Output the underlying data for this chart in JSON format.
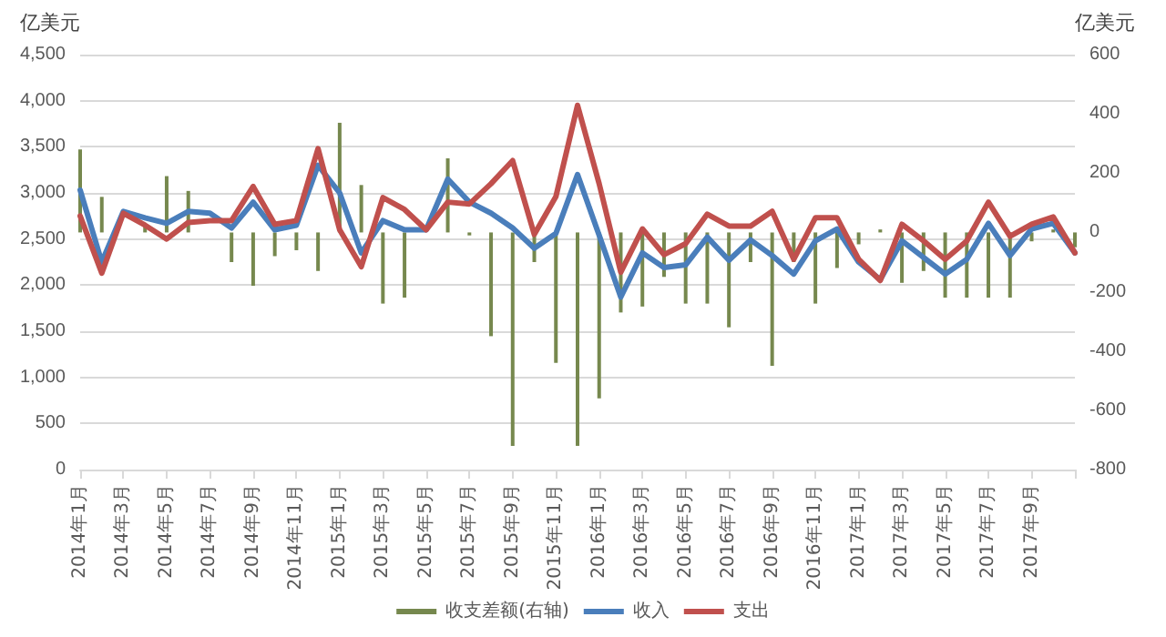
{
  "chart_data": {
    "type": "line",
    "ylabel": "亿美元",
    "y2label": "亿美元",
    "categories": [
      "2014年1月",
      null,
      "2014年3月",
      null,
      "2014年5月",
      null,
      "2014年7月",
      null,
      "2014年9月",
      null,
      "2014年11月",
      null,
      "2015年1月",
      null,
      "2015年3月",
      null,
      "2015年5月",
      null,
      "2015年7月",
      null,
      "2015年9月",
      null,
      "2015年11月",
      null,
      "2016年1月",
      null,
      "2016年3月",
      null,
      "2016年5月",
      null,
      "2016年7月",
      null,
      "2016年9月",
      null,
      "2016年11月",
      null,
      "2017年1月",
      null,
      "2017年3月",
      null,
      "2017年5月",
      null,
      "2017年7月",
      null,
      "2017年9月",
      null,
      null
    ],
    "series": [
      {
        "name": "收支差额(右轴)",
        "type": "bar",
        "axis": "y2",
        "color": "#76884e",
        "values": [
          280,
          120,
          null,
          20,
          190,
          140,
          null,
          -100,
          -180,
          -80,
          -60,
          -130,
          370,
          160,
          -240,
          -220,
          0,
          250,
          -10,
          -350,
          -720,
          -100,
          -440,
          -720,
          -560,
          -270,
          -250,
          -150,
          -240,
          -240,
          -320,
          -100,
          -450,
          -100,
          -240,
          -120,
          -40,
          10,
          -170,
          -130,
          -220,
          -220,
          -220,
          -220,
          -30,
          10,
          -50
        ]
      },
      {
        "name": "收入",
        "color": "#4a7ebb",
        "values": [
          3030,
          2250,
          2800,
          2730,
          2670,
          2800,
          2780,
          2620,
          2900,
          2600,
          2650,
          3300,
          3000,
          2350,
          2700,
          2600,
          2600,
          3150,
          2900,
          2780,
          2620,
          2400,
          2560,
          3200,
          2540,
          1870,
          2350,
          2190,
          2220,
          2520,
          2270,
          2490,
          2320,
          2120,
          2480,
          2610,
          2250,
          2060,
          2480,
          2300,
          2120,
          2280,
          2670,
          2320,
          2610,
          2670,
          2350
        ]
      },
      {
        "name": "支出",
        "color": "#c0504d",
        "values": [
          2750,
          2130,
          2780,
          2650,
          2500,
          2680,
          2700,
          2700,
          3070,
          2660,
          2700,
          3480,
          2600,
          2200,
          2950,
          2820,
          2600,
          2900,
          2880,
          3100,
          3350,
          2550,
          2960,
          3950,
          3100,
          2140,
          2610,
          2330,
          2450,
          2770,
          2640,
          2640,
          2800,
          2280,
          2730,
          2730,
          2280,
          2050,
          2660,
          2480,
          2280,
          2480,
          2900,
          2530,
          2660,
          2740,
          2350
        ]
      }
    ],
    "ylim": [
      0,
      4500
    ],
    "yticks": [
      0,
      500,
      {
        "value": 1000,
        "label": "1,000"
      },
      {
        "value": 1500,
        "label": "1,500"
      },
      {
        "value": 2000,
        "label": "2,000"
      },
      {
        "value": 2500,
        "label": "2,500"
      },
      {
        "value": 3000,
        "label": "3,000"
      },
      {
        "value": 3500,
        "label": "3,500"
      },
      {
        "value": 4000,
        "label": "4,000"
      },
      {
        "value": 4500,
        "label": "4,500"
      }
    ],
    "y2lim": [
      -800,
      600
    ],
    "y2ticks": [
      -800,
      -600,
      -400,
      -200,
      0,
      200,
      400,
      600
    ],
    "grid": "y",
    "legend": "bottom",
    "marker": "none",
    "line_style": "solid"
  }
}
